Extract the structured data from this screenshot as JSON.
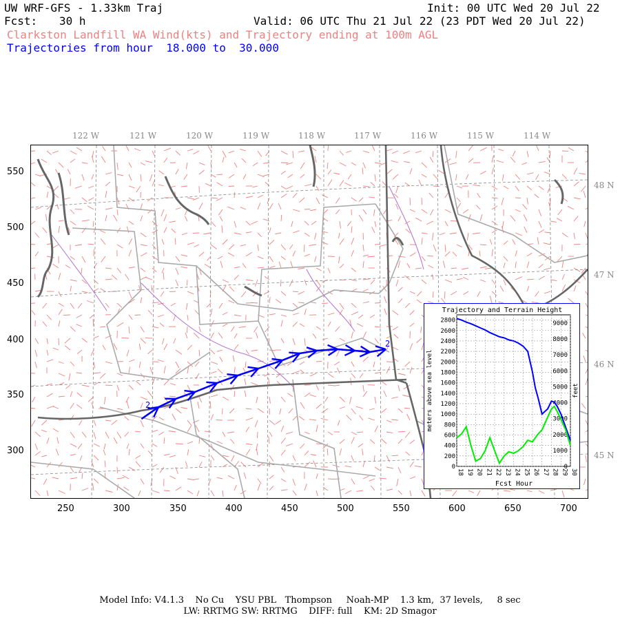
{
  "header": {
    "title": "UW WRF-GFS - 1.33km Traj",
    "init": "Init: 00 UTC Wed 20 Jul 22",
    "fcst_label": "Fcst:",
    "fcst_value": "30 h",
    "valid": "Valid: 06 UTC Thu 21 Jul 22 (23 PDT Wed 20 Jul 22)",
    "subtitle": "Clarkston Landfill WA Wind(kts) and Trajectory ending at 100m AGL",
    "traj_range": "Trajectories from hour  18.000 to  30.000"
  },
  "map": {
    "lon_labels": [
      "122 W",
      "121 W",
      "120 W",
      "119 W",
      "118 W",
      "117 W",
      "116 W",
      "115 W",
      "114 W"
    ],
    "lat_labels": [
      "48 N",
      "47 N",
      "46 N",
      "45 N"
    ],
    "x_ticks": [
      "250",
      "300",
      "350",
      "400",
      "450",
      "500",
      "550",
      "600",
      "650",
      "700"
    ],
    "y_ticks": [
      "550",
      "500",
      "450",
      "400",
      "350",
      "300"
    ],
    "traj_start_marker": "2",
    "traj_end_marker": "2",
    "colors": {
      "wind_barbs": "#f08080",
      "coast": "#666666",
      "state_border": "#666666",
      "county": "#aaaaaa",
      "rivers": "#a060c0",
      "trajectory": "#0000ff",
      "graticule": "#888888"
    }
  },
  "inset": {
    "title": "Trajectory and Terrain Height",
    "ylabel_left": "meters above sea level",
    "ylabel_right": "feet",
    "xlabel": "Fcst Hour",
    "left_ticks": [
      "2800",
      "2600",
      "2400",
      "2200",
      "2000",
      "1800",
      "1600",
      "1400",
      "1200",
      "1000",
      "800",
      "600",
      "400",
      "200",
      "0"
    ],
    "right_ticks": [
      "9000",
      "8000",
      "7000",
      "6000",
      "5000",
      "4000",
      "3000",
      "2000",
      "1000",
      "0"
    ],
    "x_ticks": [
      "18",
      "19",
      "20",
      "21",
      "22",
      "23",
      "24",
      "25",
      "26",
      "27",
      "28",
      "29",
      "30"
    ],
    "colors": {
      "trajectory": "#0000ff",
      "terrain": "#00ee00"
    }
  },
  "chart_data": {
    "type": "line",
    "title": "Trajectory and Terrain Height",
    "xlabel": "Fcst Hour",
    "ylabel": "meters above sea level",
    "xlim": [
      18,
      30
    ],
    "ylim": [
      0,
      2900
    ],
    "series": [
      {
        "name": "Trajectory",
        "x": [
          18,
          18.5,
          19,
          19.5,
          20,
          20.5,
          21,
          21.5,
          22,
          22.5,
          23,
          23.5,
          24,
          24.5,
          25,
          25.5,
          26,
          26.3,
          26.6,
          27,
          27.3,
          27.6,
          28,
          28.3,
          28.6,
          29,
          29.5,
          30
        ],
        "values": [
          2830,
          2800,
          2760,
          2730,
          2690,
          2650,
          2610,
          2560,
          2520,
          2480,
          2460,
          2420,
          2400,
          2360,
          2300,
          2200,
          1800,
          1500,
          1300,
          1000,
          1050,
          1100,
          1250,
          1230,
          1150,
          1000,
          750,
          500
        ]
      },
      {
        "name": "Terrain",
        "x": [
          18,
          18.5,
          19,
          19.5,
          20,
          20.5,
          21,
          21.5,
          22,
          22.5,
          23,
          23.5,
          24,
          24.5,
          25,
          25.5,
          26,
          26.5,
          27,
          27.5,
          28,
          28.3,
          28.6,
          29,
          29.5,
          30
        ],
        "values": [
          550,
          620,
          760,
          400,
          100,
          150,
          300,
          550,
          300,
          60,
          200,
          280,
          250,
          300,
          380,
          500,
          470,
          600,
          700,
          900,
          1100,
          1150,
          1050,
          900,
          700,
          400
        ]
      }
    ]
  },
  "footer": {
    "line1": "Model Info: V4.1.3    No Cu    YSU PBL   Thompson     Noah-MP    1.3 km,  37 levels,     8 sec",
    "line2": "LW: RRTMG SW: RRTMG    DIFF: full    KM: 2D Smagor"
  }
}
